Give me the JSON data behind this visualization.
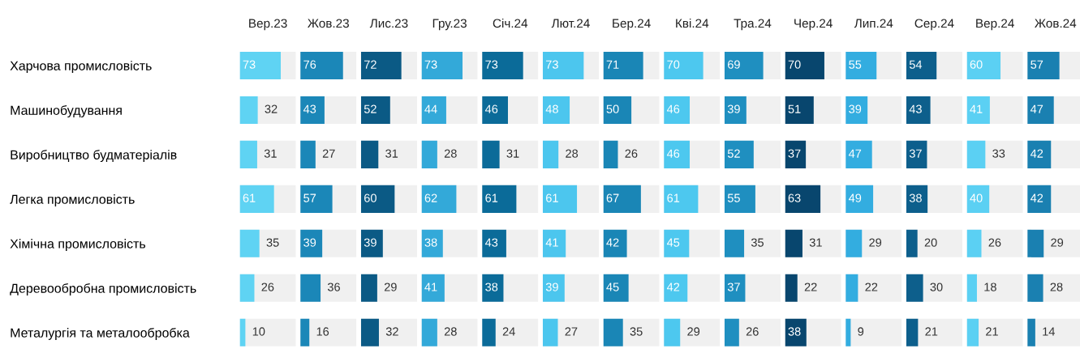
{
  "chart_data": [
    {
      "type": "bar",
      "orientation": "horizontal",
      "title": "Вер.23",
      "categories": [
        "Харчова промисловість",
        "Машинобудування",
        "Виробництво будматеріалів",
        "Легка промисловість",
        "Хімічна промисловість",
        "Деревообробна промисловість",
        "Металургія та металообробка"
      ],
      "values": [
        73,
        32,
        31,
        61,
        35,
        26,
        10
      ],
      "color": "#5fd3f3",
      "xlim": [
        0,
        100
      ],
      "data_labels": true,
      "tick_labels": "y"
    },
    {
      "type": "bar",
      "orientation": "horizontal",
      "title": "Жов.23",
      "categories": [
        null,
        null,
        null,
        null,
        null,
        null,
        null
      ],
      "values": [
        76,
        43,
        27,
        57,
        39,
        36,
        16
      ],
      "color": "#1b87b8",
      "xlim": [
        0,
        100
      ],
      "data_labels": true,
      "tick_labels": false
    },
    {
      "type": "bar",
      "orientation": "horizontal",
      "title": "Лис.23",
      "categories": [
        null,
        null,
        null,
        null,
        null,
        null,
        null
      ],
      "values": [
        72,
        52,
        31,
        60,
        39,
        29,
        32
      ],
      "color": "#0b5a85",
      "xlim": [
        0,
        100
      ],
      "data_labels": true,
      "tick_labels": false
    },
    {
      "type": "bar",
      "orientation": "horizontal",
      "title": "Гру.23",
      "categories": [
        null,
        null,
        null,
        null,
        null,
        null,
        null
      ],
      "values": [
        73,
        44,
        28,
        62,
        38,
        41,
        28
      ],
      "color": "#33a9d9",
      "xlim": [
        0,
        100
      ],
      "data_labels": true,
      "tick_labels": false
    },
    {
      "type": "bar",
      "orientation": "horizontal",
      "title": "Січ.24",
      "categories": [
        null,
        null,
        null,
        null,
        null,
        null,
        null
      ],
      "values": [
        73,
        46,
        31,
        61,
        43,
        38,
        24
      ],
      "color": "#0b6b99",
      "xlim": [
        0,
        100
      ],
      "data_labels": true,
      "tick_labels": false
    },
    {
      "type": "bar",
      "orientation": "horizontal",
      "title": "Лют.24",
      "categories": [
        null,
        null,
        null,
        null,
        null,
        null,
        null
      ],
      "values": [
        73,
        48,
        28,
        61,
        41,
        39,
        27
      ],
      "color": "#4cc6ee",
      "xlim": [
        0,
        100
      ],
      "data_labels": true,
      "tick_labels": false
    },
    {
      "type": "bar",
      "orientation": "horizontal",
      "title": "Бер.24",
      "categories": [
        null,
        null,
        null,
        null,
        null,
        null,
        null
      ],
      "values": [
        71,
        50,
        26,
        67,
        42,
        45,
        35
      ],
      "color": "#1a86b6",
      "xlim": [
        0,
        100
      ],
      "data_labels": true,
      "tick_labels": false
    },
    {
      "type": "bar",
      "orientation": "horizontal",
      "title": "Кві.24",
      "categories": [
        null,
        null,
        null,
        null,
        null,
        null,
        null
      ],
      "values": [
        70,
        46,
        46,
        61,
        45,
        42,
        29
      ],
      "color": "#4dc8ef",
      "xlim": [
        0,
        100
      ],
      "data_labels": true,
      "tick_labels": false
    },
    {
      "type": "bar",
      "orientation": "horizontal",
      "title": "Тра.24",
      "categories": [
        null,
        null,
        null,
        null,
        null,
        null,
        null
      ],
      "values": [
        69,
        39,
        52,
        55,
        35,
        37,
        26
      ],
      "color": "#1f8fc0",
      "xlim": [
        0,
        100
      ],
      "data_labels": true,
      "tick_labels": false
    },
    {
      "type": "bar",
      "orientation": "horizontal",
      "title": "Чер.24",
      "categories": [
        null,
        null,
        null,
        null,
        null,
        null,
        null
      ],
      "values": [
        70,
        51,
        37,
        63,
        31,
        22,
        38
      ],
      "color": "#08466e",
      "xlim": [
        0,
        100
      ],
      "data_labels": true,
      "tick_labels": false
    },
    {
      "type": "bar",
      "orientation": "horizontal",
      "title": "Лип.24",
      "categories": [
        null,
        null,
        null,
        null,
        null,
        null,
        null
      ],
      "values": [
        55,
        39,
        47,
        49,
        29,
        22,
        9
      ],
      "color": "#33ade0",
      "xlim": [
        0,
        100
      ],
      "data_labels": true,
      "tick_labels": false
    },
    {
      "type": "bar",
      "orientation": "horizontal",
      "title": "Сер.24",
      "categories": [
        null,
        null,
        null,
        null,
        null,
        null,
        null
      ],
      "values": [
        54,
        43,
        37,
        38,
        20,
        30,
        21
      ],
      "color": "#0d5f8c",
      "xlim": [
        0,
        100
      ],
      "data_labels": true,
      "tick_labels": false
    },
    {
      "type": "bar",
      "orientation": "horizontal",
      "title": "Вер.24",
      "categories": [
        null,
        null,
        null,
        null,
        null,
        null,
        null
      ],
      "values": [
        60,
        41,
        33,
        40,
        26,
        18,
        21
      ],
      "color": "#5bd0f3",
      "xlim": [
        0,
        100
      ],
      "data_labels": true,
      "tick_labels": false
    },
    {
      "type": "bar",
      "orientation": "horizontal",
      "title": "Жов.24",
      "categories": [
        null,
        null,
        null,
        null,
        null,
        null,
        null
      ],
      "values": [
        57,
        47,
        42,
        42,
        29,
        28,
        14
      ],
      "color": "#1a80b1",
      "xlim": [
        0,
        100
      ],
      "data_labels": true,
      "tick_labels": false
    }
  ]
}
